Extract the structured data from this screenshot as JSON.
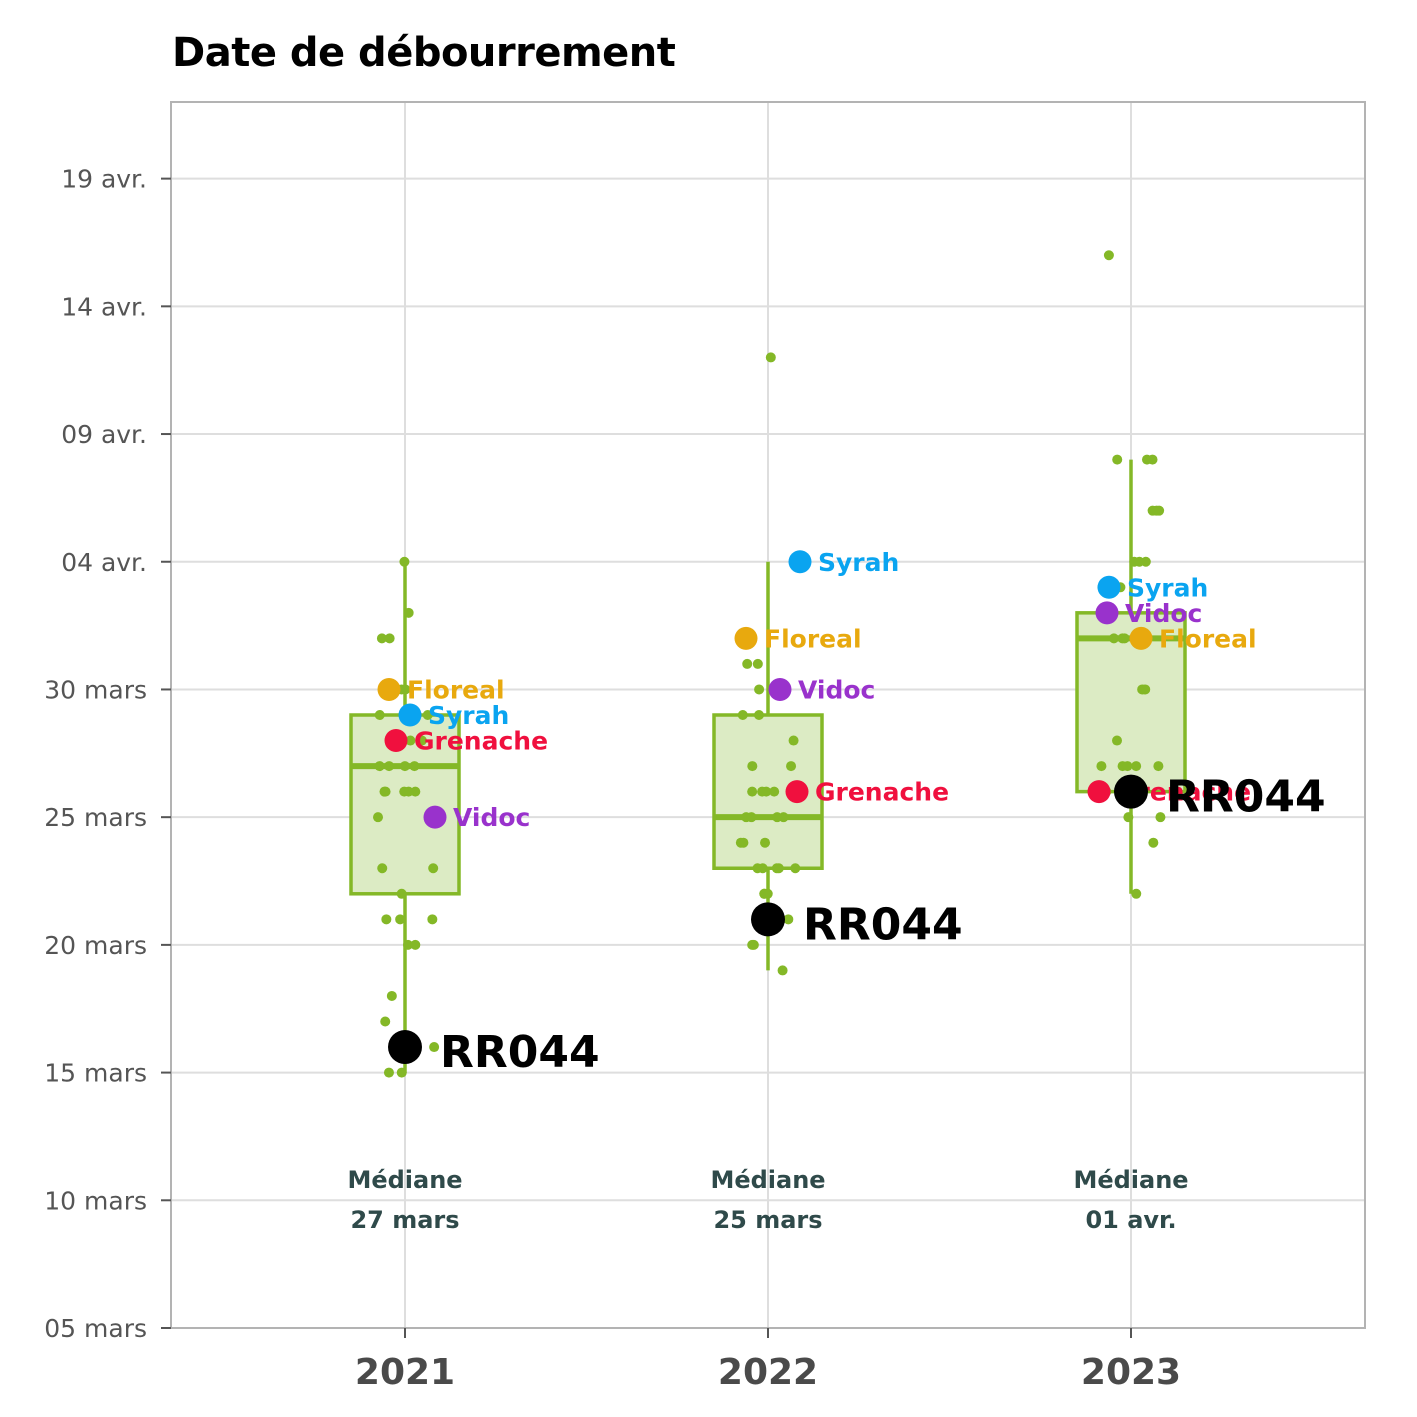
{
  "chart_data": {
    "type": "boxplot",
    "title": "Date de débourrement",
    "xlabel": "",
    "ylabel": "",
    "y_axis": {
      "unit": "date",
      "ylim": [
        "2024-03-05",
        "2024-04-22"
      ],
      "ticks": [
        {
          "value": "2024-03-05",
          "label": "05 mars"
        },
        {
          "value": "2024-03-10",
          "label": "10 mars"
        },
        {
          "value": "2024-03-15",
          "label": "15 mars"
        },
        {
          "value": "2024-03-20",
          "label": "20 mars"
        },
        {
          "value": "2024-03-25",
          "label": "25 mars"
        },
        {
          "value": "2024-03-30",
          "label": "30 mars"
        },
        {
          "value": "2024-04-04",
          "label": "04 avr."
        },
        {
          "value": "2024-04-09",
          "label": "09 avr."
        },
        {
          "value": "2024-04-14",
          "label": "14 avr."
        },
        {
          "value": "2024-04-19",
          "label": "19 avr."
        }
      ]
    },
    "grid": true,
    "categories": [
      "2021",
      "2022",
      "2023"
    ],
    "colors": {
      "box_stroke": "#84b827",
      "box_fill": "#dcebc4",
      "points": "#84b827",
      "Floreal": "#e8a90e",
      "Syrah": "#0aa4f0",
      "Grenache": "#f0103e",
      "Vidoc": "#9932cc",
      "RR044": "#000000",
      "median_text": "#2f4a4a"
    },
    "boxes": [
      {
        "category": "2021",
        "whisker_low": "2024-03-15",
        "q1": "2024-03-22",
        "median": "2024-03-27",
        "q3": "2024-03-29",
        "whisker_high": "2024-04-04"
      },
      {
        "category": "2022",
        "whisker_low": "2024-03-19",
        "q1": "2024-03-23",
        "median": "2024-03-25",
        "q3": "2024-03-29",
        "whisker_high": "2024-04-04"
      },
      {
        "category": "2023",
        "whisker_low": "2024-03-22",
        "q1": "2024-03-26",
        "median": "2024-04-01",
        "q3": "2024-04-02",
        "whisker_high": "2024-04-08"
      }
    ],
    "points": [
      {
        "category": "2021",
        "dates": [
          "2024-04-04",
          "2024-04-02",
          "2024-04-01",
          "2024-04-01",
          "2024-03-30",
          "2024-03-30",
          "2024-03-29",
          "2024-03-29",
          "2024-03-28",
          "2024-03-28",
          "2024-03-28",
          "2024-03-28",
          "2024-03-27",
          "2024-03-27",
          "2024-03-27",
          "2024-03-27",
          "2024-03-26",
          "2024-03-26",
          "2024-03-26",
          "2024-03-26",
          "2024-03-26",
          "2024-03-25",
          "2024-03-25",
          "2024-03-23",
          "2024-03-23",
          "2024-03-22",
          "2024-03-21",
          "2024-03-21",
          "2024-03-21",
          "2024-03-20",
          "2024-03-20",
          "2024-03-18",
          "2024-03-17",
          "2024-03-16",
          "2024-03-15",
          "2024-03-15"
        ]
      },
      {
        "category": "2022",
        "dates": [
          "2024-04-12",
          "2024-03-31",
          "2024-03-31",
          "2024-03-30",
          "2024-03-30",
          "2024-03-29",
          "2024-03-29",
          "2024-03-28",
          "2024-03-27",
          "2024-03-27",
          "2024-03-26",
          "2024-03-26",
          "2024-03-26",
          "2024-03-26",
          "2024-03-25",
          "2024-03-25",
          "2024-03-25",
          "2024-03-25",
          "2024-03-24",
          "2024-03-24",
          "2024-03-24",
          "2024-03-23",
          "2024-03-23",
          "2024-03-23",
          "2024-03-23",
          "2024-03-23",
          "2024-03-22",
          "2024-03-22",
          "2024-03-22",
          "2024-03-21",
          "2024-03-21",
          "2024-03-21",
          "2024-03-20",
          "2024-03-20",
          "2024-03-19"
        ]
      },
      {
        "category": "2023",
        "dates": [
          "2024-04-16",
          "2024-04-08",
          "2024-04-08",
          "2024-04-08",
          "2024-04-06",
          "2024-04-06",
          "2024-04-06",
          "2024-04-04",
          "2024-04-04",
          "2024-04-04",
          "2024-04-03",
          "2024-04-03",
          "2024-04-01",
          "2024-04-01",
          "2024-04-01",
          "2024-03-30",
          "2024-03-30",
          "2024-03-28",
          "2024-03-27",
          "2024-03-27",
          "2024-03-27",
          "2024-03-27",
          "2024-03-27",
          "2024-03-26",
          "2024-03-25",
          "2024-03-25",
          "2024-03-24",
          "2024-03-22"
        ]
      }
    ],
    "varieties": [
      {
        "name": "Floreal",
        "values": {
          "2021": "2024-03-30",
          "2022": "2024-04-01",
          "2023": "2024-04-01"
        }
      },
      {
        "name": "Syrah",
        "values": {
          "2021": "2024-03-29",
          "2022": "2024-04-04",
          "2023": "2024-04-03"
        }
      },
      {
        "name": "Grenache",
        "values": {
          "2021": "2024-03-28",
          "2022": "2024-03-26",
          "2023": "2024-03-26"
        }
      },
      {
        "name": "Vidoc",
        "values": {
          "2021": "2024-03-25",
          "2022": "2024-03-30",
          "2023": "2024-04-02"
        }
      },
      {
        "name": "RR044",
        "values": {
          "2021": "2024-03-16",
          "2022": "2024-03-21",
          "2023": "2024-03-26"
        }
      }
    ],
    "median_annotations": [
      {
        "category": "2021",
        "line1": "Médiane",
        "line2": "27 mars"
      },
      {
        "category": "2022",
        "line1": "Médiane",
        "line2": "25 mars"
      },
      {
        "category": "2023",
        "line1": "Médiane",
        "line2": "01 avr."
      }
    ]
  }
}
